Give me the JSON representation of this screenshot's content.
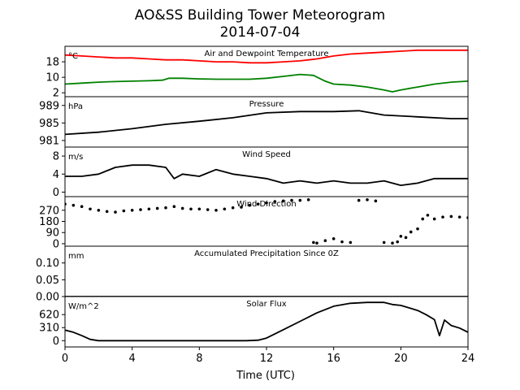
{
  "figure": {
    "title_line1": "AO&SS Building Tower Meteorogram",
    "title_line2": "2014-07-04",
    "xlabel": "Time (UTC)",
    "xticks": [
      0,
      4,
      8,
      12,
      16,
      20,
      24
    ]
  },
  "chart_data": [
    {
      "type": "line",
      "title": "Air and Dewpoint Temperature",
      "unit_label": "°C",
      "ylim": [
        0,
        26
      ],
      "yticks": [
        2,
        10,
        18
      ],
      "xlim": [
        0,
        24
      ],
      "series": [
        {
          "color": "#ff0000",
          "x": [
            0,
            1,
            2,
            3,
            4,
            5,
            6,
            7,
            8,
            9,
            10,
            11,
            12,
            13,
            14,
            15,
            16,
            17,
            18,
            19,
            20,
            21,
            22,
            23,
            24
          ],
          "values": [
            21.5,
            21,
            20.5,
            20,
            20,
            19.5,
            19,
            19,
            18.5,
            18,
            18,
            17.5,
            17.5,
            18,
            18.5,
            19.5,
            21,
            22,
            22.5,
            23,
            23.5,
            24,
            24,
            24,
            24
          ]
        },
        {
          "color": "#008000",
          "x": [
            0,
            1,
            2,
            3,
            4,
            5,
            5.8,
            6.2,
            7,
            8,
            9,
            10,
            11,
            12,
            13,
            14,
            14.8,
            15.5,
            16,
            17,
            18,
            19,
            19.5,
            20,
            21,
            22,
            23,
            24
          ],
          "values": [
            6.5,
            7,
            7.5,
            7.8,
            8,
            8.2,
            8.5,
            9.5,
            9.5,
            9.2,
            9,
            9,
            9,
            9.5,
            10.5,
            11.5,
            11,
            8,
            6.5,
            6,
            5,
            3.5,
            2.5,
            3.5,
            5,
            6.5,
            7.5,
            8
          ]
        }
      ]
    },
    {
      "type": "line",
      "title": "Pressure",
      "unit_label": "hPa",
      "ylim": [
        979.5,
        991
      ],
      "yticks": [
        981,
        985,
        989
      ],
      "xlim": [
        0,
        24
      ],
      "series": [
        {
          "color": "#000000",
          "x": [
            0,
            2,
            4,
            6,
            8,
            10,
            12,
            14,
            16,
            17.5,
            19,
            21,
            23,
            24
          ],
          "values": [
            982.4,
            982.9,
            983.7,
            984.7,
            985.4,
            986.2,
            987.3,
            987.6,
            987.6,
            987.8,
            986.8,
            986.4,
            986,
            986
          ]
        }
      ]
    },
    {
      "type": "line",
      "title": "Wind Speed",
      "unit_label": "m/s",
      "ylim": [
        -1,
        10
      ],
      "yticks": [
        0,
        4,
        8
      ],
      "xlim": [
        0,
        24
      ],
      "series": [
        {
          "color": "#000000",
          "x": [
            0,
            1,
            2,
            3,
            4,
            5,
            6,
            6.5,
            7,
            8,
            9,
            10,
            11,
            12,
            13,
            14,
            15,
            16,
            17,
            18,
            19,
            20,
            21,
            22,
            23,
            24
          ],
          "values": [
            3.5,
            3.5,
            4,
            5.5,
            6,
            6,
            5.5,
            3,
            4,
            3.5,
            5,
            4,
            3.5,
            3,
            2,
            2.5,
            2,
            2.5,
            2,
            2,
            2.5,
            1.5,
            2,
            3,
            3,
            3
          ]
        }
      ]
    },
    {
      "type": "scatter",
      "title": "Wind Direction",
      "ylim": [
        -20,
        380
      ],
      "yticks": [
        0,
        90,
        180,
        270
      ],
      "xlim": [
        0,
        24
      ],
      "series": [
        {
          "color": "#000000",
          "x": [
            0,
            0.5,
            1,
            1.5,
            2,
            2.5,
            3,
            3.5,
            4,
            4.5,
            5,
            5.5,
            6,
            6.5,
            7,
            7.5,
            8,
            8.5,
            9,
            9.5,
            10,
            10.5,
            11,
            11.5,
            12,
            12.5,
            13,
            13.5,
            14,
            14.5,
            14.8,
            15,
            15.5,
            16,
            16.5,
            17,
            17.5,
            18,
            18.5,
            19,
            19.5,
            19.8,
            20,
            20.3,
            20.6,
            21,
            21.3,
            21.6,
            22,
            22.5,
            23,
            23.5,
            24
          ],
          "values": [
            320,
            310,
            300,
            280,
            270,
            260,
            255,
            265,
            270,
            275,
            280,
            285,
            290,
            300,
            285,
            280,
            280,
            275,
            270,
            280,
            290,
            295,
            310,
            320,
            330,
            340,
            345,
            350,
            350,
            355,
            10,
            5,
            25,
            40,
            15,
            10,
            350,
            355,
            345,
            10,
            5,
            15,
            60,
            50,
            95,
            120,
            200,
            230,
            200,
            215,
            220,
            215,
            210
          ]
        }
      ]
    },
    {
      "type": "line",
      "title": "Accumulated Precipitation Since 0Z",
      "unit_label": "mm",
      "ylim": [
        0,
        0.15
      ],
      "yticks": [
        0.0,
        0.05,
        0.1
      ],
      "ytick_labels": [
        "0.00",
        "0.05",
        "0.10"
      ],
      "xlim": [
        0,
        24
      ],
      "series": [
        {
          "color": "#000000",
          "x": [
            0,
            24
          ],
          "values": [
            0,
            0
          ]
        }
      ]
    },
    {
      "type": "line",
      "title": "Solar Flux",
      "unit_label": "W/m^2",
      "ylim": [
        -150,
        1050
      ],
      "yticks": [
        0,
        310,
        620
      ],
      "xlim": [
        0,
        24
      ],
      "xlabel": "Time (UTC)",
      "series": [
        {
          "color": "#000000",
          "x": [
            0,
            0.5,
            1,
            1.5,
            2,
            4,
            6,
            8,
            10,
            10.8,
            11.5,
            12,
            13,
            14,
            15,
            16,
            17,
            18,
            19,
            19.5,
            20,
            21,
            21.5,
            22,
            22.3,
            22.6,
            23,
            23.5,
            24
          ],
          "values": [
            250,
            200,
            120,
            30,
            0,
            0,
            0,
            0,
            0,
            0,
            10,
            60,
            260,
            460,
            660,
            820,
            890,
            910,
            910,
            860,
            840,
            720,
            620,
            500,
            120,
            490,
            360,
            300,
            200
          ]
        }
      ]
    }
  ]
}
